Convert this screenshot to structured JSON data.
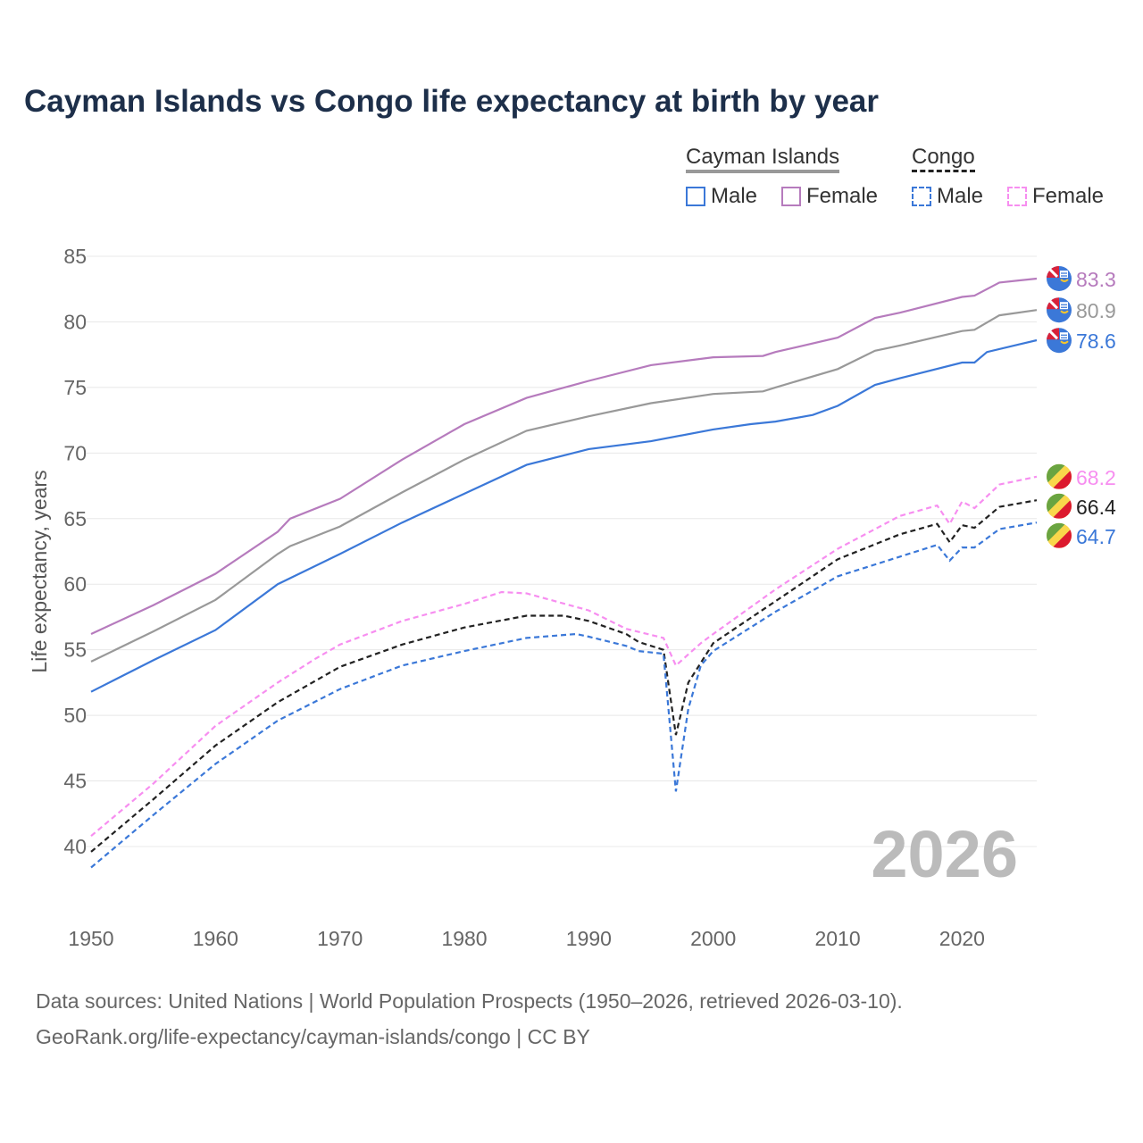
{
  "chart_data": {
    "type": "line",
    "title": "Cayman Islands vs Congo life expectancy at birth by year",
    "xlabel": "",
    "ylabel": "Life expectancy, years",
    "xlim": [
      1950,
      2026
    ],
    "ylim": [
      37,
      85
    ],
    "yticks": [
      40,
      45,
      50,
      55,
      60,
      65,
      70,
      75,
      80,
      85
    ],
    "xticks": [
      1950,
      1960,
      1970,
      1980,
      1990,
      2000,
      2010,
      2020
    ],
    "grid": true,
    "year_watermark": "2026",
    "legend": {
      "placement": "top-right",
      "groups": [
        {
          "name": "Cayman Islands",
          "items": [
            "Male",
            "Female"
          ]
        },
        {
          "name": "Congo",
          "items": [
            "Male",
            "Female"
          ]
        }
      ]
    },
    "series": [
      {
        "name": "Cayman Islands Female",
        "color": "#b67bbd",
        "dash": false,
        "end_label": "83.3",
        "flag": "cayman",
        "points": [
          [
            1950,
            56.2
          ],
          [
            1955,
            58.4
          ],
          [
            1960,
            60.8
          ],
          [
            1965,
            64.0
          ],
          [
            1966,
            65.0
          ],
          [
            1970,
            66.5
          ],
          [
            1975,
            69.5
          ],
          [
            1980,
            72.2
          ],
          [
            1985,
            74.2
          ],
          [
            1990,
            75.5
          ],
          [
            1995,
            76.7
          ],
          [
            2000,
            77.3
          ],
          [
            2004,
            77.4
          ],
          [
            2005,
            77.7
          ],
          [
            2010,
            78.8
          ],
          [
            2013,
            80.3
          ],
          [
            2015,
            80.7
          ],
          [
            2020,
            81.9
          ],
          [
            2021,
            82.0
          ],
          [
            2023,
            83.0
          ],
          [
            2026,
            83.3
          ]
        ]
      },
      {
        "name": "Cayman Islands Total",
        "color": "#999999",
        "dash": false,
        "end_label": "80.9",
        "flag": "cayman",
        "points": [
          [
            1950,
            54.1
          ],
          [
            1955,
            56.4
          ],
          [
            1960,
            58.8
          ],
          [
            1965,
            62.3
          ],
          [
            1966,
            62.9
          ],
          [
            1970,
            64.4
          ],
          [
            1975,
            67.0
          ],
          [
            1980,
            69.5
          ],
          [
            1985,
            71.7
          ],
          [
            1990,
            72.8
          ],
          [
            1995,
            73.8
          ],
          [
            2000,
            74.5
          ],
          [
            2004,
            74.7
          ],
          [
            2005,
            75.0
          ],
          [
            2010,
            76.4
          ],
          [
            2013,
            77.8
          ],
          [
            2015,
            78.2
          ],
          [
            2020,
            79.3
          ],
          [
            2021,
            79.4
          ],
          [
            2023,
            80.5
          ],
          [
            2026,
            80.9
          ]
        ]
      },
      {
        "name": "Cayman Islands Male",
        "color": "#3b78d8",
        "dash": false,
        "end_label": "78.6",
        "flag": "cayman",
        "points": [
          [
            1950,
            51.8
          ],
          [
            1955,
            54.2
          ],
          [
            1960,
            56.5
          ],
          [
            1965,
            60.0
          ],
          [
            1970,
            62.3
          ],
          [
            1975,
            64.7
          ],
          [
            1980,
            66.9
          ],
          [
            1985,
            69.1
          ],
          [
            1990,
            70.3
          ],
          [
            1995,
            70.9
          ],
          [
            2000,
            71.8
          ],
          [
            2003,
            72.2
          ],
          [
            2005,
            72.4
          ],
          [
            2008,
            72.9
          ],
          [
            2010,
            73.6
          ],
          [
            2013,
            75.2
          ],
          [
            2015,
            75.7
          ],
          [
            2020,
            76.9
          ],
          [
            2021,
            76.9
          ],
          [
            2022,
            77.7
          ],
          [
            2026,
            78.6
          ]
        ]
      },
      {
        "name": "Congo Female",
        "color": "#f78ef0",
        "dash": true,
        "end_label": "68.2",
        "flag": "congo",
        "points": [
          [
            1950,
            40.8
          ],
          [
            1955,
            44.8
          ],
          [
            1960,
            49.2
          ],
          [
            1965,
            52.5
          ],
          [
            1968,
            54.3
          ],
          [
            1970,
            55.4
          ],
          [
            1975,
            57.2
          ],
          [
            1980,
            58.5
          ],
          [
            1983,
            59.4
          ],
          [
            1985,
            59.3
          ],
          [
            1990,
            58.0
          ],
          [
            1993,
            56.6
          ],
          [
            1996,
            55.9
          ],
          [
            1997,
            53.8
          ],
          [
            1999,
            55.5
          ],
          [
            2000,
            56.2
          ],
          [
            2005,
            59.6
          ],
          [
            2010,
            62.7
          ],
          [
            2015,
            65.2
          ],
          [
            2018,
            66.0
          ],
          [
            2019,
            64.6
          ],
          [
            2020,
            66.3
          ],
          [
            2021,
            65.8
          ],
          [
            2023,
            67.6
          ],
          [
            2026,
            68.2
          ]
        ]
      },
      {
        "name": "Congo Total",
        "color": "#222222",
        "dash": true,
        "end_label": "66.4",
        "flag": "congo",
        "points": [
          [
            1950,
            39.6
          ],
          [
            1955,
            43.6
          ],
          [
            1960,
            47.7
          ],
          [
            1965,
            51.0
          ],
          [
            1970,
            53.7
          ],
          [
            1975,
            55.4
          ],
          [
            1980,
            56.7
          ],
          [
            1985,
            57.6
          ],
          [
            1988,
            57.6
          ],
          [
            1990,
            57.2
          ],
          [
            1993,
            56.2
          ],
          [
            1994,
            55.6
          ],
          [
            1996,
            55.0
          ],
          [
            1997,
            48.5
          ],
          [
            1998,
            52.5
          ],
          [
            2000,
            55.5
          ],
          [
            2005,
            58.7
          ],
          [
            2010,
            61.9
          ],
          [
            2015,
            63.8
          ],
          [
            2018,
            64.6
          ],
          [
            2019,
            63.2
          ],
          [
            2020,
            64.5
          ],
          [
            2021,
            64.3
          ],
          [
            2023,
            65.9
          ],
          [
            2026,
            66.4
          ]
        ]
      },
      {
        "name": "Congo Male",
        "color": "#3b78d8",
        "dash": true,
        "end_label": "64.7",
        "flag": "congo",
        "points": [
          [
            1950,
            38.4
          ],
          [
            1955,
            42.4
          ],
          [
            1960,
            46.3
          ],
          [
            1965,
            49.6
          ],
          [
            1970,
            52.0
          ],
          [
            1975,
            53.8
          ],
          [
            1980,
            54.9
          ],
          [
            1985,
            55.9
          ],
          [
            1989,
            56.2
          ],
          [
            1990,
            56.0
          ],
          [
            1993,
            55.3
          ],
          [
            1994,
            54.9
          ],
          [
            1996,
            54.7
          ],
          [
            1997,
            44.2
          ],
          [
            1998,
            50.5
          ],
          [
            1999,
            53.8
          ],
          [
            2000,
            54.9
          ],
          [
            2005,
            57.9
          ],
          [
            2010,
            60.6
          ],
          [
            2015,
            62.1
          ],
          [
            2018,
            63.0
          ],
          [
            2019,
            61.8
          ],
          [
            2020,
            62.8
          ],
          [
            2021,
            62.8
          ],
          [
            2023,
            64.2
          ],
          [
            2026,
            64.7
          ]
        ]
      }
    ]
  },
  "source": {
    "line1": "Data sources: United Nations | World Population Prospects (1950–2026, retrieved 2026-03-10).",
    "line2": "GeoRank.org/life-expectancy/cayman-islands/congo | CC BY"
  }
}
